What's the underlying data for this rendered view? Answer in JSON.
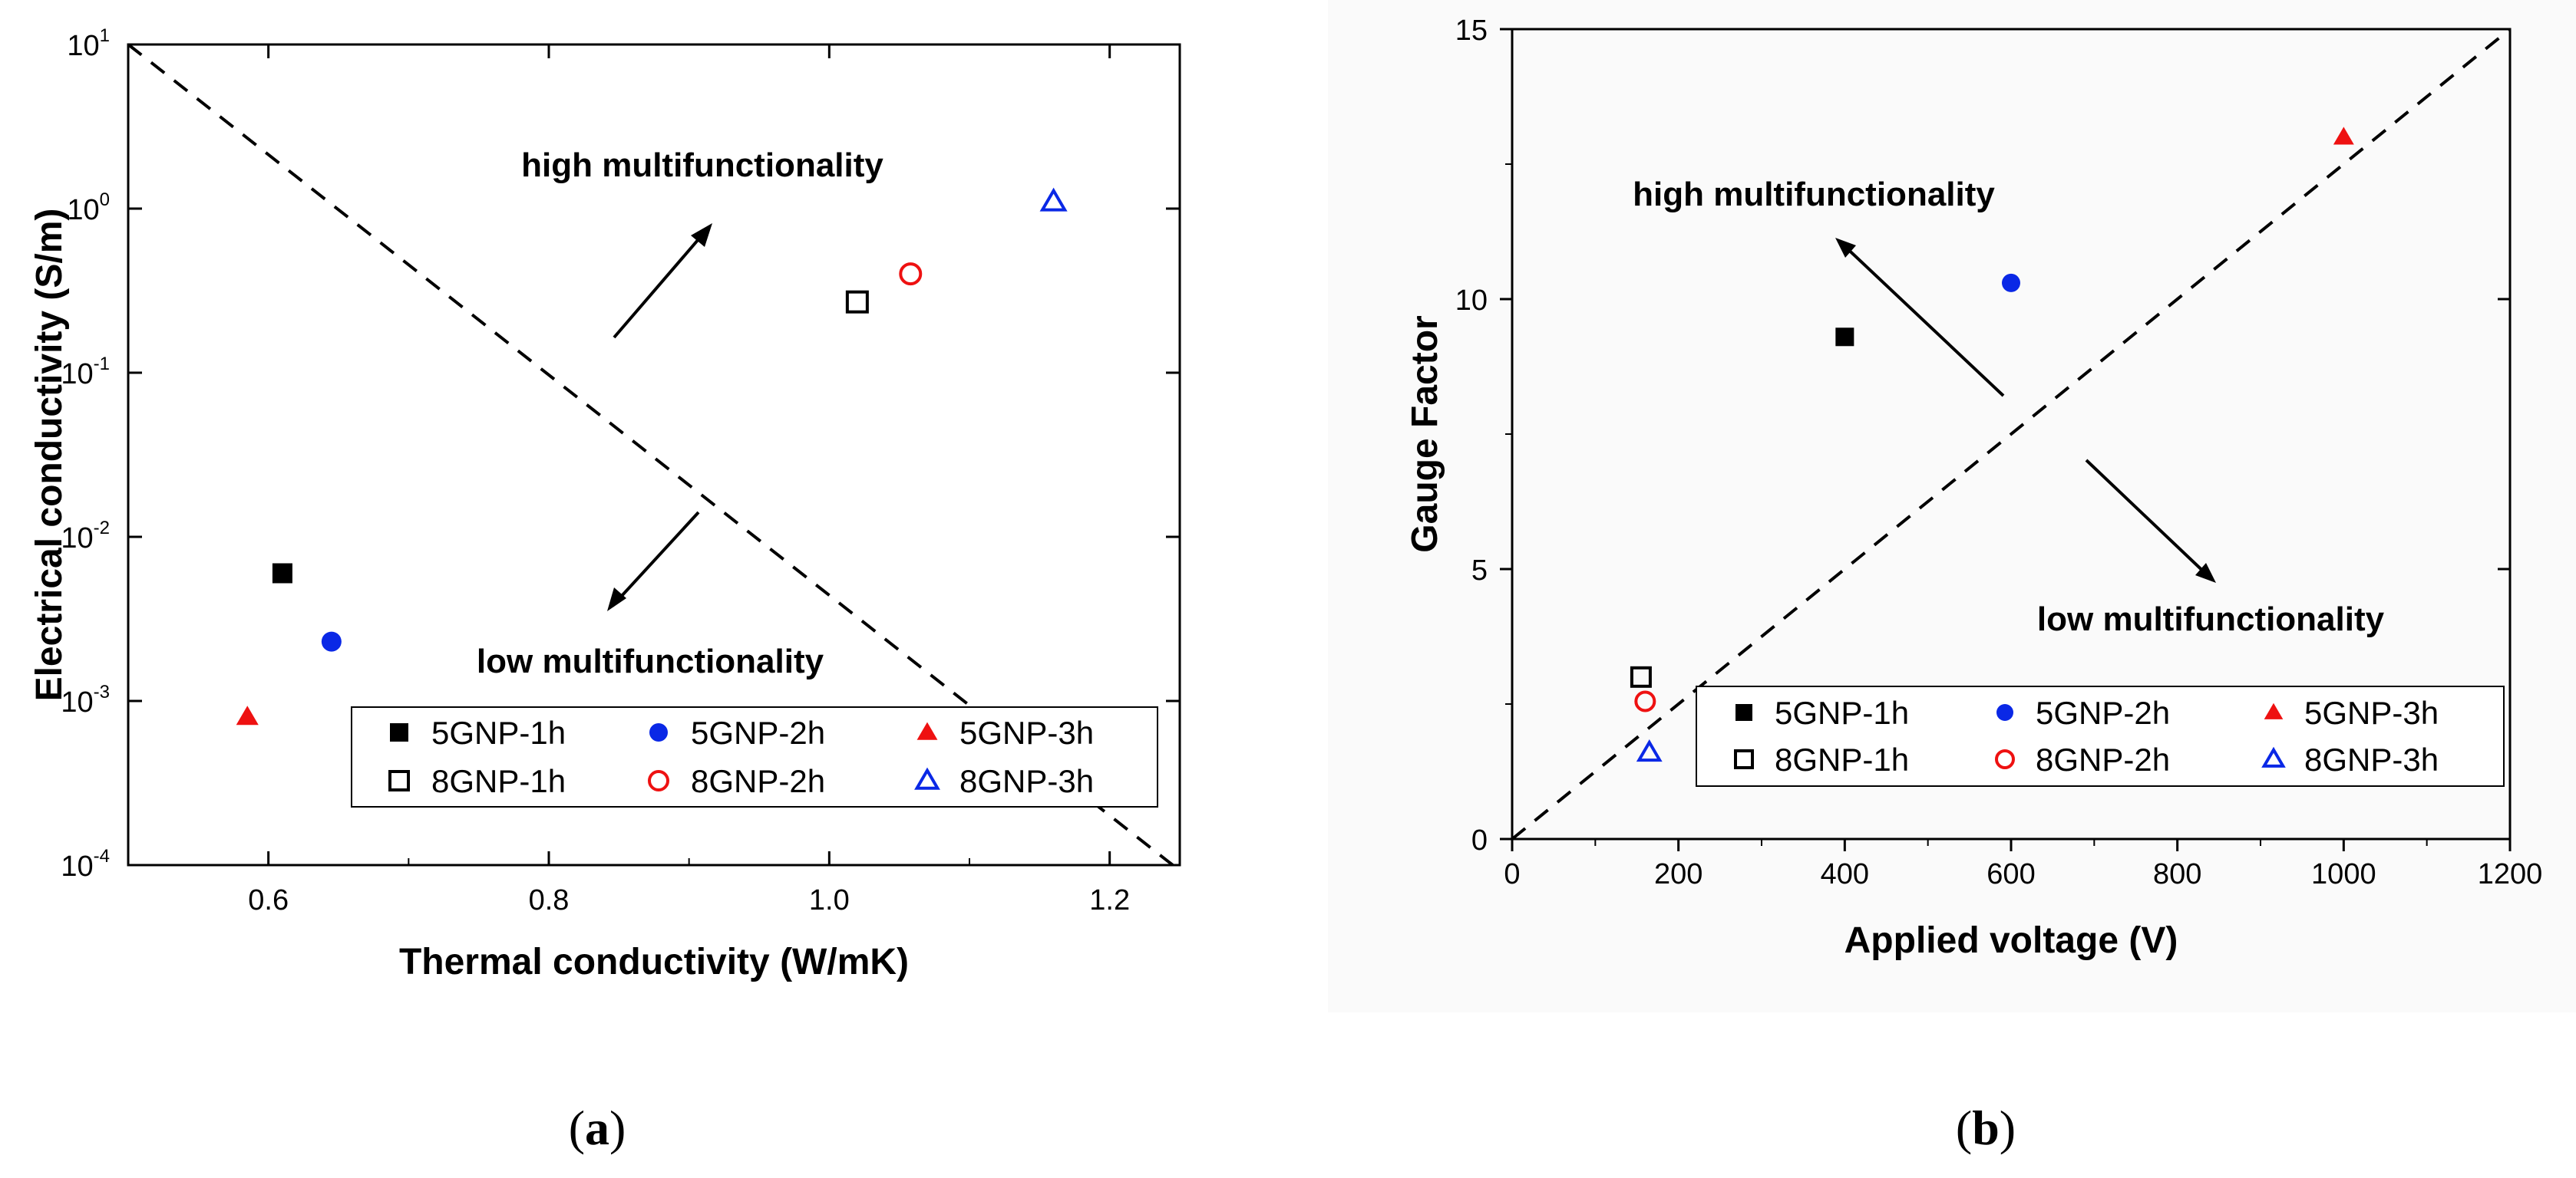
{
  "chart_data": [
    {
      "type": "scatter",
      "panel": "a",
      "caption_letter": "a",
      "xlabel": "Thermal conductivity (W/mK)",
      "ylabel": "Electrical conductivity (S/m)",
      "xlim": [
        0.5,
        1.25
      ],
      "ylim_log10": [
        -4,
        1
      ],
      "yscale": "log",
      "xticks": [
        0.6,
        0.8,
        1.0,
        1.2
      ],
      "xtick_labels": [
        "0.6",
        "0.8",
        "1.0",
        "1.2"
      ],
      "yticks_exp": [
        1,
        0,
        -1,
        -2,
        -3,
        -4
      ],
      "yticks": [
        {
          "base": "10",
          "exp": "1"
        },
        {
          "base": "10",
          "exp": "0"
        },
        {
          "base": "10",
          "exp": "-1"
        },
        {
          "base": "10",
          "exp": "-2"
        },
        {
          "base": "10",
          "exp": "-3"
        },
        {
          "base": "10",
          "exp": "-4"
        }
      ],
      "series": [
        {
          "name": "5GNP-1h",
          "x": 0.61,
          "y": 0.006,
          "marker": "square",
          "filled": true,
          "color": "#000000"
        },
        {
          "name": "5GNP-2h",
          "x": 0.645,
          "y": 0.0023,
          "marker": "circle",
          "filled": true,
          "color": "#0a28e6"
        },
        {
          "name": "5GNP-3h",
          "x": 0.585,
          "y": 0.0008,
          "marker": "triangle",
          "filled": true,
          "color": "#ee1111"
        },
        {
          "name": "8GNP-1h",
          "x": 1.02,
          "y": 0.27,
          "marker": "square",
          "filled": false,
          "color": "#000000"
        },
        {
          "name": "8GNP-2h",
          "x": 1.058,
          "y": 0.4,
          "marker": "circle",
          "filled": false,
          "color": "#ee1111"
        },
        {
          "name": "8GNP-3h",
          "x": 1.16,
          "y": 1.1,
          "marker": "triangle",
          "filled": false,
          "color": "#0a28e6"
        }
      ],
      "reference_line": {
        "from": [
          0.5,
          10
        ],
        "to": [
          1.245,
          0.0001
        ],
        "style": "dashed"
      },
      "annotations": {
        "high": "high multifunctionality",
        "low": "low multifunctionality"
      },
      "legend_position": "bottom-right"
    },
    {
      "type": "scatter",
      "panel": "b",
      "caption_letter": "b",
      "xlabel": "Applied voltage (V)",
      "ylabel": "Gauge Factor",
      "xlim": [
        0,
        1200
      ],
      "ylim": [
        0,
        15
      ],
      "xticks": [
        0,
        200,
        400,
        600,
        800,
        1000,
        1200
      ],
      "xtick_labels": [
        "0",
        "200",
        "400",
        "600",
        "800",
        "1000",
        "1200"
      ],
      "yticks": [
        0,
        5,
        10,
        15
      ],
      "ytick_labels": [
        "0",
        "5",
        "10",
        "15"
      ],
      "series": [
        {
          "name": "5GNP-1h",
          "x": 400,
          "y": 9.3,
          "marker": "square",
          "filled": true,
          "color": "#000000"
        },
        {
          "name": "5GNP-2h",
          "x": 600,
          "y": 10.3,
          "marker": "circle",
          "filled": true,
          "color": "#0a28e6"
        },
        {
          "name": "5GNP-3h",
          "x": 1000,
          "y": 13.0,
          "marker": "triangle",
          "filled": true,
          "color": "#ee1111"
        },
        {
          "name": "8GNP-1h",
          "x": 155,
          "y": 3.0,
          "marker": "square",
          "filled": false,
          "color": "#000000"
        },
        {
          "name": "8GNP-2h",
          "x": 160,
          "y": 2.55,
          "marker": "circle",
          "filled": false,
          "color": "#ee1111"
        },
        {
          "name": "8GNP-3h",
          "x": 165,
          "y": 1.6,
          "marker": "triangle",
          "filled": false,
          "color": "#0a28e6"
        }
      ],
      "reference_line": {
        "from": [
          0,
          0
        ],
        "to": [
          1200,
          15
        ],
        "style": "dashed"
      },
      "annotations": {
        "high": "high multifunctionality",
        "low": "low multifunctionality"
      },
      "legend_position": "bottom-right"
    }
  ]
}
